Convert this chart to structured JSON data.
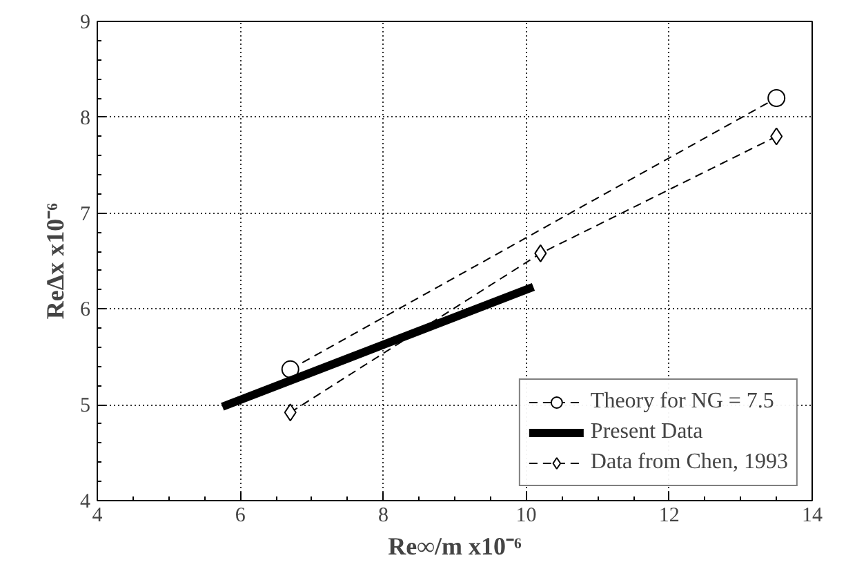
{
  "chart_data": {
    "type": "line",
    "xlabel": "Re∞/m x10⁻⁶",
    "ylabel": "ReΔx x10⁻⁶",
    "xlim": [
      4,
      14
    ],
    "ylim": [
      4,
      9
    ],
    "xticks": [
      4,
      6,
      8,
      10,
      12,
      14
    ],
    "yticks": [
      4,
      5,
      6,
      7,
      8,
      9
    ],
    "grid": true,
    "legend": "bottom right",
    "series": [
      {
        "name": "Theory for NG = 7.5",
        "color": "#000000",
        "x": [
          6.7,
          13.5
        ],
        "values": [
          5.37,
          8.2
        ],
        "marker": "circle",
        "line_style": "dashed"
      },
      {
        "name": "Present Data",
        "color": "#000000",
        "x": [
          5.75,
          10.1
        ],
        "values": [
          4.98,
          6.23
        ],
        "marker": "none",
        "line_style": "solid"
      },
      {
        "name": "Data from Chen, 1993",
        "color": "#000000",
        "x": [
          6.7,
          10.2,
          13.5
        ],
        "values": [
          4.92,
          6.58,
          7.8
        ],
        "marker": "diamond",
        "line_style": "dashed"
      }
    ]
  }
}
